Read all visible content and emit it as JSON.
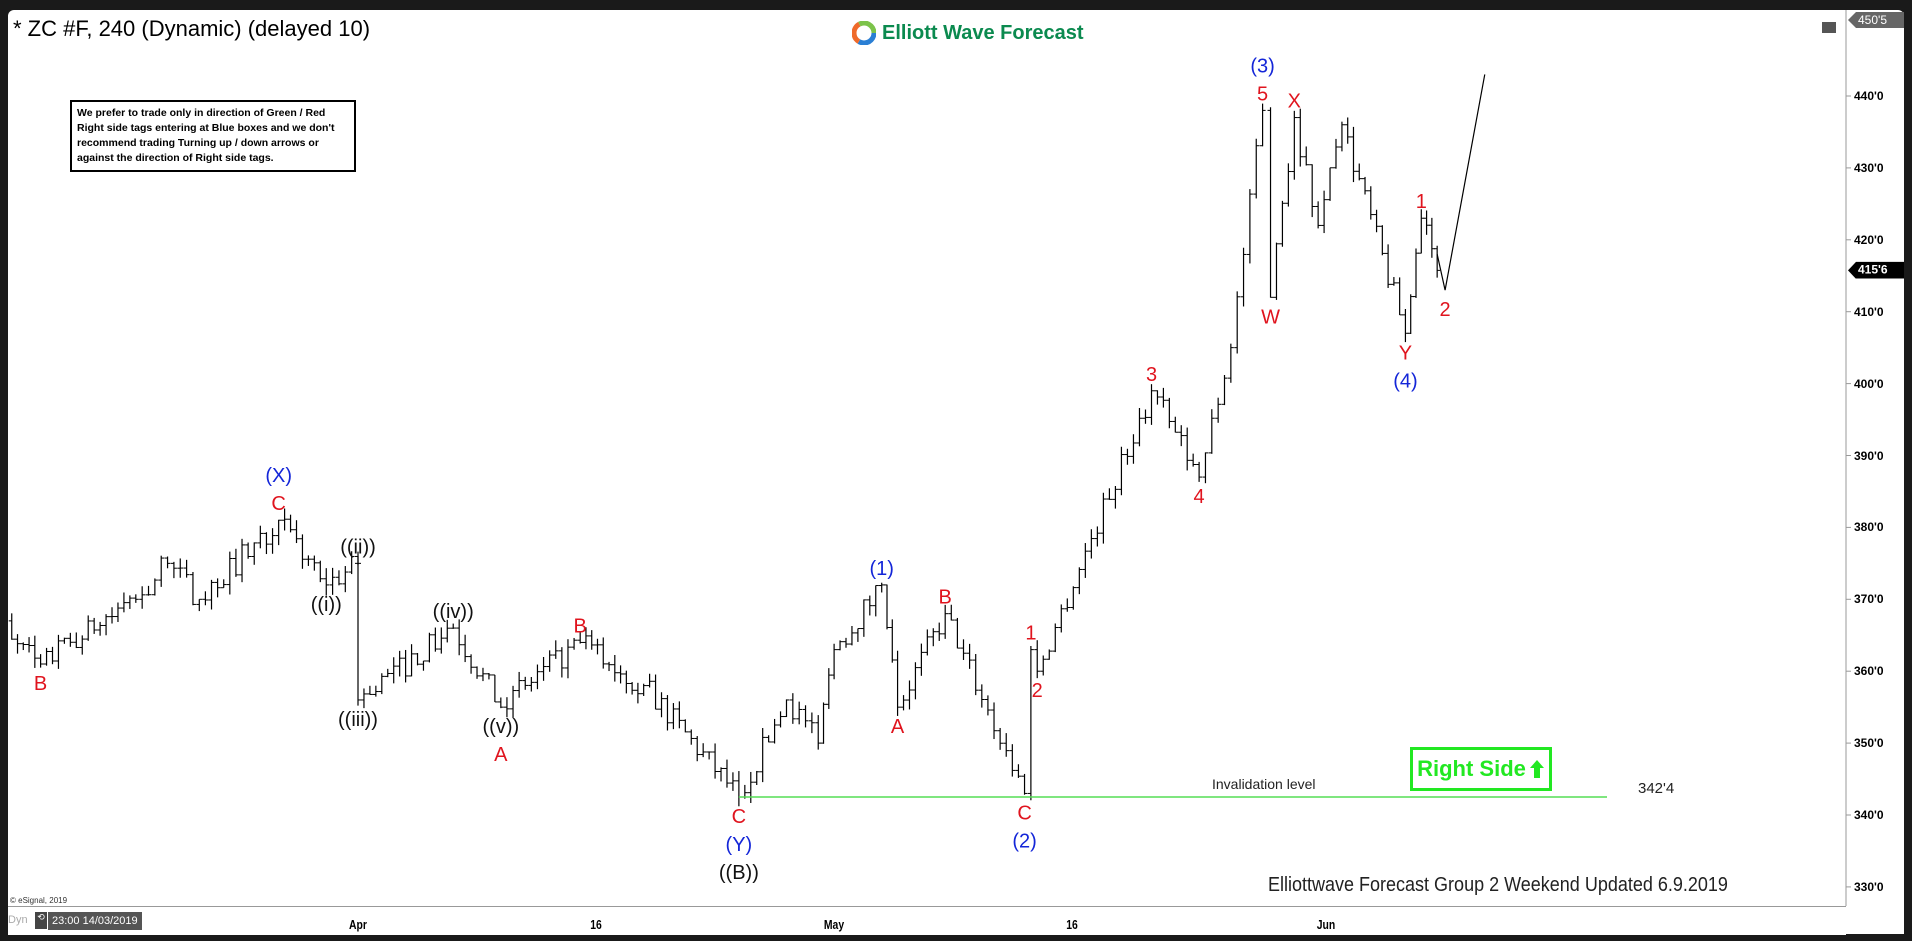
{
  "header": {
    "title": "* ZC #F, 240 (Dynamic) (delayed 10)",
    "logo_text": "Elliott Wave Forecast"
  },
  "note": "We prefer to trade only in direction of Green / Red Right side tags entering at Blue boxes and we don't recommend trading Turning up / down arrows or against the direction of Right side tags.",
  "footer": "Elliottwave Forecast Group 2 Weekend Updated 6.9.2019",
  "copyright": "© eSignal, 2019",
  "cursor_time": "23:00 14/03/2019",
  "dyn_label": "Dyn",
  "right_side": {
    "label": "Right Side",
    "direction": "up",
    "color": "#22e822"
  },
  "invalidation": {
    "label": "Invalidation level",
    "value_label": "342'4",
    "price": 342.5,
    "from": "2019-04-25",
    "to": "2019-06-15",
    "color": "#55dd55"
  },
  "last_price_label": "415'6",
  "top_price_label": "450'5",
  "chart_data": {
    "type": "bar",
    "instrument": "ZC #F",
    "interval": "240",
    "y_ticks": [
      "330'0",
      "340'0",
      "350'0",
      "360'0",
      "370'0",
      "380'0",
      "390'0",
      "400'0",
      "410'0",
      "420'0",
      "430'0",
      "440'0"
    ],
    "y_tick_values": [
      330,
      340,
      350,
      360,
      370,
      380,
      390,
      400,
      410,
      420,
      430,
      440
    ],
    "ylim": [
      327,
      450.6
    ],
    "x_ticks": [
      {
        "label": "Apr",
        "date": "2019-04-01"
      },
      {
        "label": "16",
        "date": "2019-04-16"
      },
      {
        "label": "May",
        "date": "2019-05-01"
      },
      {
        "label": "16",
        "date": "2019-05-16"
      },
      {
        "label": "Jun",
        "date": "2019-06-01"
      }
    ],
    "pivots": [
      {
        "date": "2019-03-08",
        "price": 367,
        "labels": []
      },
      {
        "date": "2019-03-12",
        "price": 361,
        "labels": [
          {
            "text": "B",
            "color": "red"
          }
        ]
      },
      {
        "date": "2019-03-18",
        "price": 370,
        "labels": []
      },
      {
        "date": "2019-03-20",
        "price": 375,
        "labels": []
      },
      {
        "date": "2019-03-22",
        "price": 370,
        "labels": []
      },
      {
        "date": "2019-03-27",
        "price": 381,
        "labels": [
          {
            "text": "C",
            "color": "red"
          },
          {
            "text": "(X)",
            "color": "blue"
          }
        ]
      },
      {
        "date": "2019-03-30",
        "price": 372,
        "labels": [
          {
            "text": "((i))",
            "color": "black"
          }
        ]
      },
      {
        "date": "2019-04-01",
        "price": 375,
        "labels": [
          {
            "text": "((ii))",
            "color": "black"
          }
        ]
      },
      {
        "date": "2019-04-01",
        "price": 356,
        "labels": [
          {
            "text": "((iii))",
            "color": "black"
          }
        ]
      },
      {
        "date": "2019-04-07",
        "price": 366,
        "labels": [
          {
            "text": "((iv))",
            "color": "black"
          }
        ]
      },
      {
        "date": "2019-04-10",
        "price": 355,
        "labels": [
          {
            "text": "((v))",
            "color": "black"
          },
          {
            "text": "A",
            "color": "red"
          }
        ]
      },
      {
        "date": "2019-04-15",
        "price": 364,
        "labels": [
          {
            "text": "B",
            "color": "red"
          }
        ]
      },
      {
        "date": "2019-04-19",
        "price": 358,
        "labels": []
      },
      {
        "date": "2019-04-25",
        "price": 342.5,
        "labels": [
          {
            "text": "C",
            "color": "red"
          },
          {
            "text": "(Y)",
            "color": "blue"
          },
          {
            "text": "((B))",
            "color": "black"
          }
        ]
      },
      {
        "date": "2019-04-28",
        "price": 356,
        "labels": []
      },
      {
        "date": "2019-04-30",
        "price": 350,
        "labels": []
      },
      {
        "date": "2019-05-01",
        "price": 363,
        "labels": []
      },
      {
        "date": "2019-05-04",
        "price": 372,
        "labels": [
          {
            "text": "(1)",
            "color": "blue"
          }
        ]
      },
      {
        "date": "2019-05-05",
        "price": 355,
        "labels": [
          {
            "text": "A",
            "color": "red"
          }
        ]
      },
      {
        "date": "2019-05-08",
        "price": 368,
        "labels": [
          {
            "text": "B",
            "color": "red"
          }
        ]
      },
      {
        "date": "2019-05-13",
        "price": 343,
        "labels": [
          {
            "text": "C",
            "color": "red"
          },
          {
            "text": "(2)",
            "color": "blue"
          }
        ]
      },
      {
        "date": "2019-05-13.4",
        "price": 363,
        "labels": [
          {
            "text": "1",
            "color": "red"
          }
        ]
      },
      {
        "date": "2019-05-13.8",
        "price": 360,
        "labels": [
          {
            "text": "2",
            "color": "red"
          }
        ]
      },
      {
        "date": "2019-05-21",
        "price": 399,
        "labels": [
          {
            "text": "3",
            "color": "red"
          }
        ]
      },
      {
        "date": "2019-05-24",
        "price": 387,
        "labels": [
          {
            "text": "4",
            "color": "red"
          }
        ]
      },
      {
        "date": "2019-05-26",
        "price": 405,
        "labels": []
      },
      {
        "date": "2019-05-28",
        "price": 438,
        "labels": [
          {
            "text": "5",
            "color": "red"
          },
          {
            "text": "(3)",
            "color": "blue"
          }
        ]
      },
      {
        "date": "2019-05-28.5",
        "price": 412,
        "labels": [
          {
            "text": "W",
            "color": "red"
          }
        ]
      },
      {
        "date": "2019-05-30",
        "price": 437,
        "labels": [
          {
            "text": "X",
            "color": "red"
          }
        ]
      },
      {
        "date": "2019-05-31.5",
        "price": 422,
        "labels": []
      },
      {
        "date": "2019-06-02",
        "price": 436,
        "labels": []
      },
      {
        "date": "2019-06-06",
        "price": 407,
        "labels": [
          {
            "text": "Y",
            "color": "red"
          },
          {
            "text": "(4)",
            "color": "blue"
          }
        ]
      },
      {
        "date": "2019-06-07",
        "price": 423,
        "labels": [
          {
            "text": "1",
            "color": "red"
          }
        ]
      },
      {
        "date": "2019-06-08",
        "price": 415.75,
        "labels": []
      }
    ],
    "projection": [
      {
        "date": "2019-06-08",
        "price": 418
      },
      {
        "date": "2019-06-08.5",
        "price": 413,
        "labels": [
          {
            "text": "2",
            "color": "red"
          }
        ]
      },
      {
        "date": "2019-06-11",
        "price": 443
      }
    ]
  }
}
